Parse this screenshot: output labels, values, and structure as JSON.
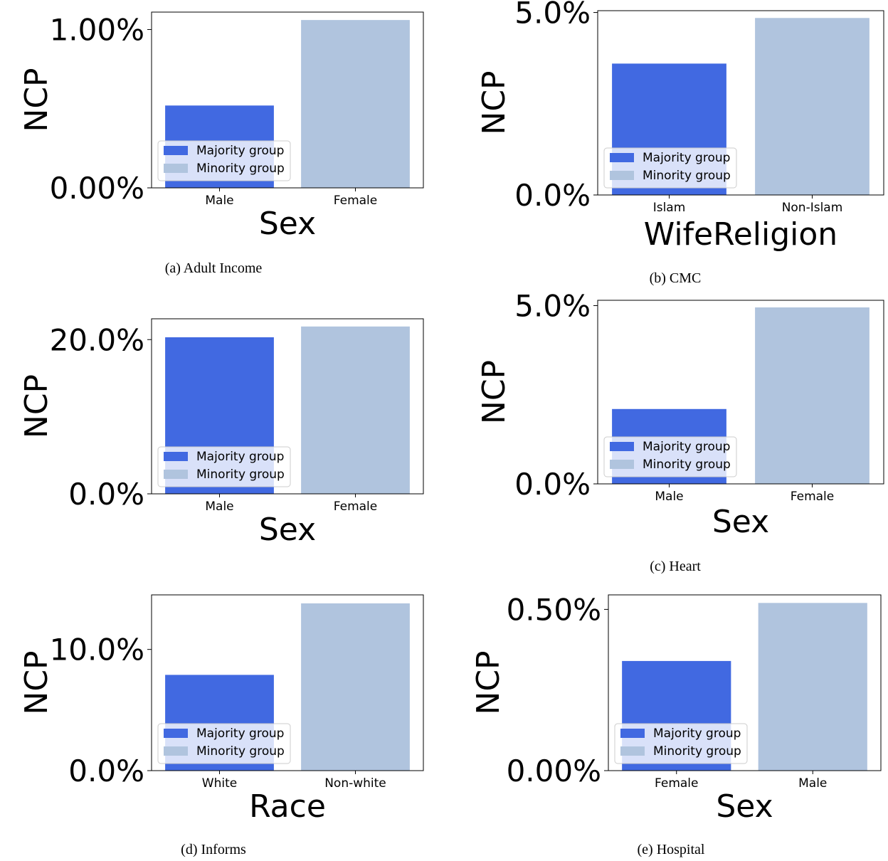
{
  "colors": {
    "majority": "#4169e1",
    "minority": "#b0c4de",
    "frame": "#000000"
  },
  "legend": {
    "entries": [
      "Majority group",
      "Minority group"
    ],
    "placement": "lower-left"
  },
  "chart_data": [
    {
      "type": "bar",
      "caption": "(a) Adult Income",
      "categories": [
        "Male",
        "Female"
      ],
      "values": [
        0.52,
        1.06
      ],
      "xlabel": "Sex",
      "ylabel": "NCP",
      "ylim": [
        0,
        1.11
      ],
      "yticks": [
        0,
        1.0
      ],
      "ytick_labels": [
        "0.00%",
        "1.00%"
      ],
      "legend": [
        "Majority group",
        "Minority group"
      ]
    },
    {
      "type": "bar",
      "caption": "(b) CMC",
      "categories": [
        "Islam",
        "Non-Islam"
      ],
      "values": [
        3.6,
        4.85
      ],
      "xlabel": "WifeReligion",
      "ylabel": "NCP",
      "ylim": [
        0,
        5.05
      ],
      "yticks": [
        0,
        5.0
      ],
      "ytick_labels": [
        "0.0%",
        "5.0%"
      ],
      "legend": [
        "Majority group",
        "Minority group"
      ]
    },
    {
      "type": "bar",
      "caption": "",
      "categories": [
        "Male",
        "Female"
      ],
      "values": [
        20.3,
        21.7
      ],
      "xlabel": "Sex",
      "ylabel": "NCP",
      "ylim": [
        0,
        22.7
      ],
      "yticks": [
        0,
        20.0
      ],
      "ytick_labels": [
        "0.0%",
        "20.0%"
      ],
      "legend": [
        "Majority group",
        "Minority group"
      ]
    },
    {
      "type": "bar",
      "caption": "(c) Heart",
      "categories": [
        "Male",
        "Female"
      ],
      "values": [
        2.1,
        4.95
      ],
      "xlabel": "Sex",
      "ylabel": "NCP",
      "ylim": [
        0,
        5.15
      ],
      "yticks": [
        0,
        5.0
      ],
      "ytick_labels": [
        "0.0%",
        "5.0%"
      ],
      "legend": [
        "Majority group",
        "Minority group"
      ]
    },
    {
      "type": "bar",
      "caption": "(d) Informs",
      "categories": [
        "White",
        "Non-white"
      ],
      "values": [
        7.9,
        13.8
      ],
      "xlabel": "Race",
      "ylabel": "NCP",
      "ylim": [
        0,
        14.5
      ],
      "yticks": [
        0,
        10.0
      ],
      "ytick_labels": [
        "0.0%",
        "10.0%"
      ],
      "legend": [
        "Majority group",
        "Minority group"
      ]
    },
    {
      "type": "bar",
      "caption": "(e) Hospital",
      "categories": [
        "Female",
        "Male"
      ],
      "values": [
        0.34,
        0.52
      ],
      "xlabel": "Sex",
      "ylabel": "NCP",
      "ylim": [
        0,
        0.545
      ],
      "yticks": [
        0,
        0.5
      ],
      "ytick_labels": [
        "0.00%",
        "0.50%"
      ],
      "legend": [
        "Majority group",
        "Minority group"
      ]
    }
  ]
}
